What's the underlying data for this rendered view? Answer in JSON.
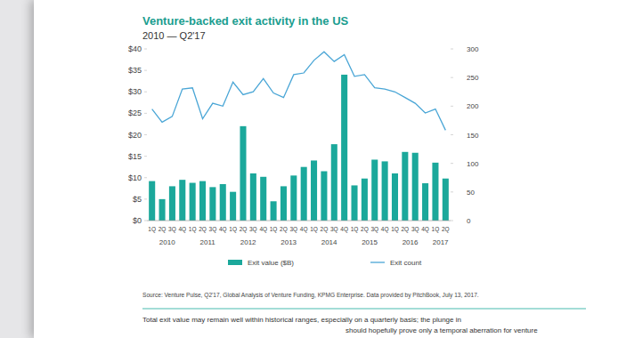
{
  "chart_data": {
    "type": "bar",
    "title": "Venture-backed exit activity in the US",
    "subtitle": "2010 — Q2'17",
    "categories": [
      "1Q",
      "2Q",
      "3Q",
      "4Q",
      "1Q",
      "2Q",
      "3Q",
      "4Q",
      "1Q",
      "2Q",
      "3Q",
      "4Q",
      "1Q",
      "2Q",
      "3Q",
      "4Q",
      "1Q",
      "2Q",
      "3Q",
      "4Q",
      "1Q",
      "2Q",
      "3Q",
      "4Q",
      "1Q",
      "2Q",
      "3Q",
      "4Q",
      "1Q",
      "2Q"
    ],
    "category_groups": [
      {
        "label": "2010",
        "count": 4
      },
      {
        "label": "2011",
        "count": 4
      },
      {
        "label": "2012",
        "count": 4
      },
      {
        "label": "2013",
        "count": 4
      },
      {
        "label": "2014",
        "count": 4
      },
      {
        "label": "2015",
        "count": 4
      },
      {
        "label": "2016",
        "count": 4
      },
      {
        "label": "2017",
        "count": 2
      }
    ],
    "series": [
      {
        "name": "Exit value ($B)",
        "type": "bar",
        "color": "#1ba89b",
        "values": [
          9.2,
          5,
          8,
          9.5,
          8.8,
          9.2,
          7.8,
          8.5,
          6.7,
          22,
          11,
          10.2,
          4.5,
          8,
          10.5,
          12.5,
          14,
          11.5,
          17.8,
          34,
          8.2,
          9.8,
          14.2,
          13.8,
          11,
          16,
          15.8,
          8.7,
          13.5,
          9.8
        ]
      },
      {
        "name": "Exit count",
        "type": "line",
        "axis": "y2",
        "color": "#4aa6d6",
        "values": [
          195,
          172,
          182,
          230,
          232,
          178,
          205,
          200,
          242,
          220,
          225,
          248,
          223,
          215,
          255,
          258,
          280,
          295,
          278,
          290,
          252,
          255,
          232,
          230,
          225,
          215,
          205,
          188,
          195,
          158
        ]
      }
    ],
    "ylim": [
      0,
      40
    ],
    "yticks": [
      {
        "value": 0,
        "label": "$0"
      },
      {
        "value": 5,
        "label": "$5"
      },
      {
        "value": 10,
        "label": "$10"
      },
      {
        "value": 15,
        "label": "$15"
      },
      {
        "value": 20,
        "label": "$20"
      },
      {
        "value": 25,
        "label": "$25"
      },
      {
        "value": 30,
        "label": "$30"
      },
      {
        "value": 35,
        "label": "$35"
      },
      {
        "value": 40,
        "label": "$40"
      }
    ],
    "y2lim": [
      0,
      300
    ],
    "y2ticks": [
      0,
      50,
      100,
      150,
      200,
      250,
      300
    ],
    "grid": false,
    "legend": "bottom",
    "source": "Source: Venture Pulse, Q2'17, Global Analysis of Venture Funding, KPMG Enterprise. Data provided by PitchBook, July 13, 2017."
  },
  "text": {
    "paragraph": [
      "Total exit value may remain well within historical ranges, especially on a quarterly basis; the plunge in",
      "should hopefully prove only a temporal aberration for venture"
    ]
  }
}
